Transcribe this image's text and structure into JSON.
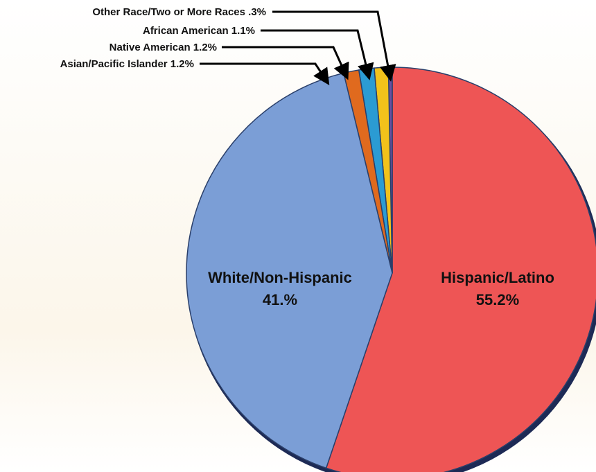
{
  "chart_data": {
    "type": "pie",
    "title": "",
    "series": [
      {
        "name": "",
        "slices": [
          {
            "label": "Hispanic/Latino",
            "value": 55.2,
            "value_text": "55.2%",
            "color": "#EE5555"
          },
          {
            "label": "White/Non-Hispanic",
            "value": 41.0,
            "value_text": "41.%",
            "color": "#7B9ED6"
          },
          {
            "label": "Asian/Pacific Islander",
            "value": 1.2,
            "value_text": "1.2%",
            "color": "#E06A1E"
          },
          {
            "label": "Native American",
            "value": 1.2,
            "value_text": "1.2%",
            "color": "#2B9BD3"
          },
          {
            "label": "African American",
            "value": 1.1,
            "value_text": "1.1%",
            "color": "#F2C21B"
          },
          {
            "label": "Other Race/Two or More Races",
            "value": 0.3,
            "value_text": ".3%",
            "color": "#6B4FA0"
          }
        ]
      }
    ],
    "callouts": [
      {
        "text": "Other Race/Two or More Races .3%"
      },
      {
        "text": "African American 1.1%"
      },
      {
        "text": "Native American 1.2%"
      },
      {
        "text": "Asian/Pacific Islander 1.2%"
      }
    ],
    "legend": "none"
  }
}
